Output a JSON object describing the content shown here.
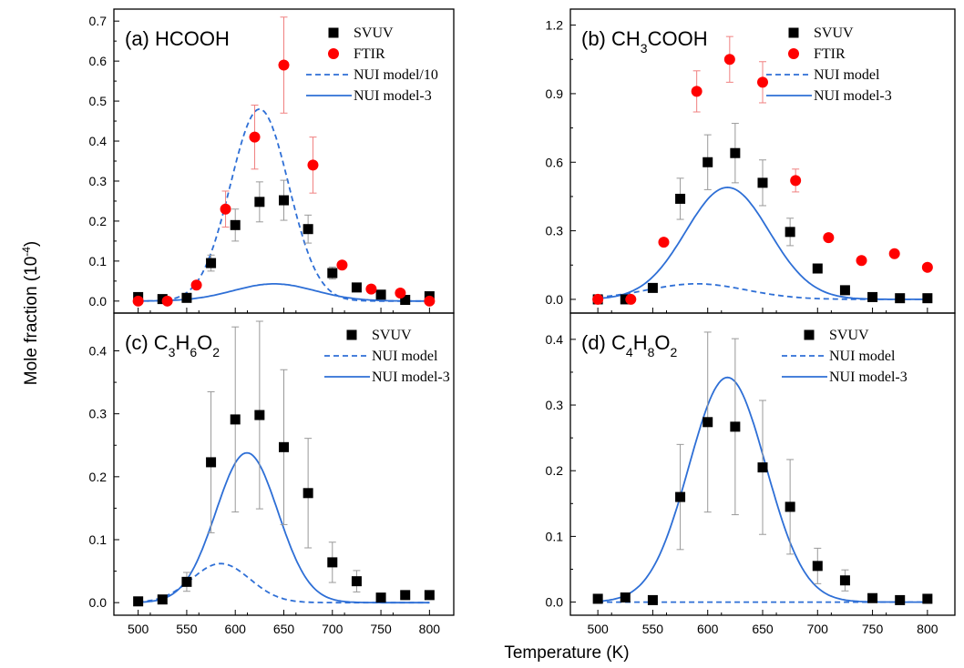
{
  "figure": {
    "ylabel": "Mole fraction (10",
    "ylabel_sup": "-4",
    "ylabel_end": ")",
    "xlabel": "Temperature (K)"
  },
  "colors": {
    "svuv": "#000000",
    "ftir": "#ff0000",
    "model": "#2e6fd6",
    "errorbar_ftir": "#f08080",
    "errorbar_svuv": "#999999"
  },
  "chart_data": [
    {
      "type": "scatter",
      "panel_label": "(a) HCOOH",
      "title_parts": [
        [
          "(a) HCOOH",
          ""
        ]
      ],
      "xlim": [
        475,
        825
      ],
      "ylim": [
        -0.03,
        0.73
      ],
      "xticks": [
        500,
        550,
        600,
        650,
        700,
        750,
        800
      ],
      "yticks": [
        0.0,
        0.1,
        0.2,
        0.3,
        0.4,
        0.5,
        0.6,
        0.7
      ],
      "ytick_labels": [
        "0.0",
        "0.1",
        "0.2",
        "0.3",
        "0.4",
        "0.5",
        "0.6",
        "0.7"
      ],
      "legend": [
        "SVUV",
        "FTIR",
        "NUI model/10",
        "NUI model-3"
      ],
      "series": [
        {
          "name": "SVUV",
          "kind": "square",
          "x": [
            500,
            525,
            550,
            575,
            600,
            625,
            650,
            675,
            700,
            725,
            750,
            775,
            800
          ],
          "y": [
            0.01,
            0.005,
            0.008,
            0.095,
            0.19,
            0.248,
            0.252,
            0.18,
            0.07,
            0.034,
            0.016,
            0.003,
            0.012
          ],
          "err": [
            0,
            0,
            0,
            0.02,
            0.04,
            0.05,
            0.05,
            0.035,
            0.015,
            0,
            0,
            0,
            0
          ]
        },
        {
          "name": "FTIR",
          "kind": "circle",
          "x": [
            500,
            530,
            560,
            590,
            620,
            650,
            680,
            710,
            740,
            770,
            800
          ],
          "y": [
            0.0,
            0.0,
            0.04,
            0.23,
            0.41,
            0.59,
            0.34,
            0.09,
            0.03,
            0.02,
            0.0
          ],
          "err": [
            0,
            0,
            0,
            0.045,
            0.08,
            0.12,
            0.07,
            0,
            0,
            0,
            0
          ]
        },
        {
          "name": "NUI model/10",
          "kind": "dashed",
          "amp": 0.48,
          "mu": 625,
          "sigma": 30,
          "xmin": 500,
          "xmax": 800
        },
        {
          "name": "NUI model-3",
          "kind": "solid",
          "amp": 0.043,
          "mu": 640,
          "sigma": 42,
          "xmin": 500,
          "xmax": 800
        }
      ]
    },
    {
      "type": "scatter",
      "panel_label": "(b) CH3COOH",
      "title_parts": [
        [
          "(b) CH",
          ""
        ],
        [
          "3",
          "sub"
        ],
        [
          "COOH",
          ""
        ]
      ],
      "xlim": [
        475,
        825
      ],
      "ylim": [
        -0.06,
        1.27
      ],
      "xticks": [
        500,
        550,
        600,
        650,
        700,
        750,
        800
      ],
      "yticks": [
        0.0,
        0.3,
        0.6,
        0.9,
        1.2
      ],
      "ytick_labels": [
        "0.0",
        "0.3",
        "0.6",
        "0.9",
        "1.2"
      ],
      "legend": [
        "SVUV",
        "FTIR",
        "NUI model",
        "NUI model-3"
      ],
      "series": [
        {
          "name": "SVUV",
          "kind": "square",
          "x": [
            500,
            525,
            550,
            575,
            600,
            625,
            650,
            675,
            700,
            725,
            750,
            775,
            800
          ],
          "y": [
            0.0,
            0.0,
            0.05,
            0.44,
            0.6,
            0.64,
            0.51,
            0.295,
            0.135,
            0.04,
            0.01,
            0.005,
            0.005
          ],
          "err": [
            0,
            0,
            0,
            0.09,
            0.12,
            0.13,
            0.1,
            0.06,
            0,
            0,
            0,
            0,
            0
          ]
        },
        {
          "name": "FTIR",
          "kind": "circle",
          "x": [
            500,
            530,
            560,
            590,
            620,
            650,
            680,
            710,
            740,
            770,
            800
          ],
          "y": [
            0.0,
            0.0,
            0.25,
            0.91,
            1.05,
            0.95,
            0.52,
            0.27,
            0.17,
            0.2,
            0.14
          ],
          "err": [
            0,
            0,
            0,
            0.09,
            0.1,
            0.09,
            0.05,
            0,
            0,
            0,
            0
          ]
        },
        {
          "name": "NUI model",
          "kind": "dashed",
          "amp": 0.068,
          "mu": 590,
          "sigma": 45,
          "xmin": 500,
          "xmax": 800
        },
        {
          "name": "NUI model-3",
          "kind": "solid",
          "amp": 0.49,
          "mu": 618,
          "sigma": 38,
          "xmin": 500,
          "xmax": 800
        }
      ]
    },
    {
      "type": "scatter",
      "panel_label": "(c) C3H6O2",
      "title_parts": [
        [
          "(c) C",
          ""
        ],
        [
          "3",
          "sub"
        ],
        [
          "H",
          ""
        ],
        [
          "6",
          "sub"
        ],
        [
          "O",
          ""
        ],
        [
          "2",
          "sub"
        ]
      ],
      "xlim": [
        475,
        825
      ],
      "ylim": [
        -0.02,
        0.46
      ],
      "xticks": [
        500,
        550,
        600,
        650,
        700,
        750,
        800
      ],
      "yticks": [
        0.0,
        0.1,
        0.2,
        0.3,
        0.4
      ],
      "ytick_labels": [
        "0.0",
        "0.1",
        "0.2",
        "0.3",
        "0.4"
      ],
      "legend": [
        "SVUV",
        "NUI model",
        "NUI model-3"
      ],
      "series": [
        {
          "name": "SVUV",
          "kind": "square",
          "x": [
            500,
            525,
            550,
            575,
            600,
            625,
            650,
            675,
            700,
            725,
            750,
            775,
            800
          ],
          "y": [
            0.002,
            0.005,
            0.033,
            0.223,
            0.291,
            0.298,
            0.247,
            0.174,
            0.064,
            0.034,
            0.008,
            0.012,
            0.012
          ],
          "err": [
            0,
            0,
            0.015,
            0.112,
            0.147,
            0.149,
            0.123,
            0.087,
            0.032,
            0.017,
            0,
            0,
            0
          ]
        },
        {
          "name": "NUI model",
          "kind": "dashed",
          "amp": 0.062,
          "mu": 585,
          "sigma": 30,
          "xmin": 500,
          "xmax": 800
        },
        {
          "name": "NUI model-3",
          "kind": "solid",
          "amp": 0.238,
          "mu": 612,
          "sigma": 32,
          "xmin": 500,
          "xmax": 800
        }
      ]
    },
    {
      "type": "scatter",
      "panel_label": "(d) C4H8O2",
      "title_parts": [
        [
          "(d) C",
          ""
        ],
        [
          "4",
          "sub"
        ],
        [
          "H",
          ""
        ],
        [
          "8",
          "sub"
        ],
        [
          "O",
          ""
        ],
        [
          "2",
          "sub"
        ]
      ],
      "xlim": [
        475,
        825
      ],
      "ylim": [
        -0.02,
        0.44
      ],
      "xticks": [
        500,
        550,
        600,
        650,
        700,
        750,
        800
      ],
      "yticks": [
        0.0,
        0.1,
        0.2,
        0.3,
        0.4
      ],
      "ytick_labels": [
        "0.0",
        "0.1",
        "0.2",
        "0.3",
        "0.4"
      ],
      "legend": [
        "SVUV",
        "NUI model",
        "NUI model-3"
      ],
      "series": [
        {
          "name": "SVUV",
          "kind": "square",
          "x": [
            500,
            525,
            550,
            575,
            600,
            625,
            650,
            675,
            700,
            725,
            750,
            775,
            800
          ],
          "y": [
            0.005,
            0.007,
            0.003,
            0.16,
            0.274,
            0.267,
            0.205,
            0.145,
            0.055,
            0.033,
            0.006,
            0.003,
            0.005
          ],
          "err": [
            0,
            0,
            0,
            0.08,
            0.137,
            0.134,
            0.102,
            0.072,
            0.027,
            0.016,
            0,
            0,
            0
          ]
        },
        {
          "name": "NUI model",
          "kind": "dashed",
          "amp": 0.0,
          "mu": 620,
          "sigma": 30,
          "xmin": 500,
          "xmax": 800
        },
        {
          "name": "NUI model-3",
          "kind": "solid",
          "amp": 0.342,
          "mu": 618,
          "sigma": 35,
          "xmin": 500,
          "xmax": 800
        }
      ]
    }
  ]
}
